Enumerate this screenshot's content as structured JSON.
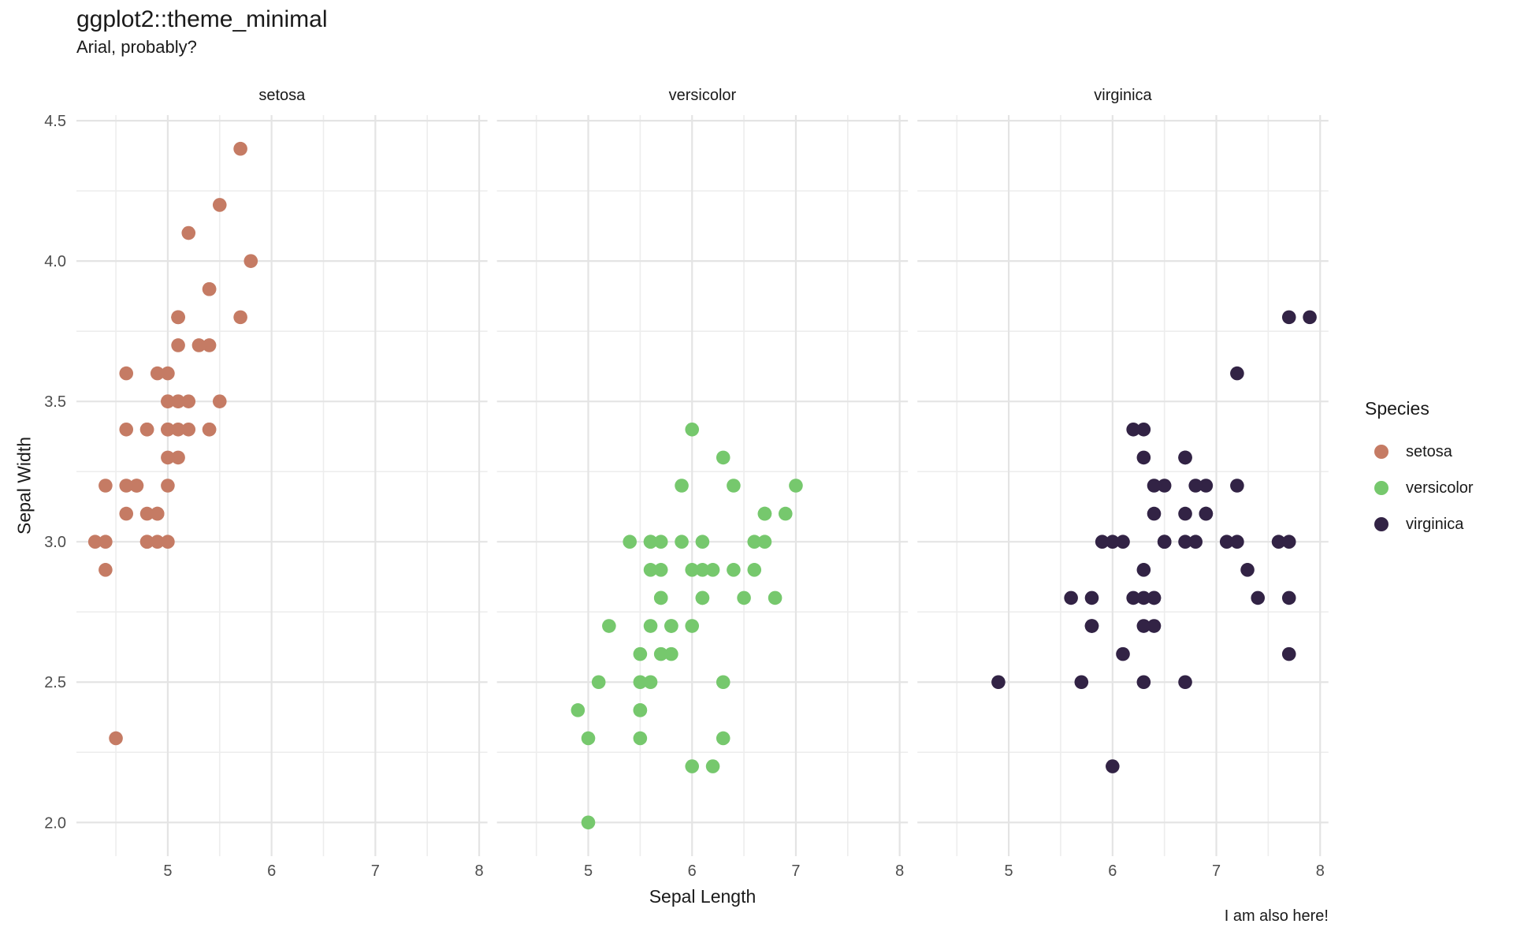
{
  "chart_data": {
    "type": "scatter",
    "title": "ggplot2::theme_minimal",
    "subtitle": "Arial, probably?",
    "caption": "I am also here!",
    "xlabel": "Sepal Length",
    "ylabel": "Sepal Width",
    "legend_title": "Species",
    "legend_position": "right",
    "grid": "on",
    "x_range": [
      4.12,
      8.08
    ],
    "y_range": [
      1.88,
      4.52
    ],
    "x_ticks": [
      "5",
      "6",
      "7",
      "8"
    ],
    "y_ticks": [
      "2.0",
      "2.5",
      "3.0",
      "3.5",
      "4.0",
      "4.5"
    ],
    "x_minor": [
      4.5,
      5.5,
      6.5,
      7.5
    ],
    "y_minor": [
      2.25,
      2.75,
      3.25,
      3.75,
      4.25
    ],
    "colors": {
      "grid_major": "#e4e4e4",
      "grid_minor": "#ededed",
      "tick_text": "#4d4d4d",
      "text": "#1a1a1a"
    },
    "facets": [
      {
        "label": "setosa",
        "color": "#c57b64",
        "points": [
          [
            5.1,
            3.5
          ],
          [
            4.9,
            3.0
          ],
          [
            4.7,
            3.2
          ],
          [
            4.6,
            3.1
          ],
          [
            5.0,
            3.6
          ],
          [
            5.4,
            3.9
          ],
          [
            4.6,
            3.4
          ],
          [
            5.0,
            3.4
          ],
          [
            4.4,
            2.9
          ],
          [
            4.9,
            3.1
          ],
          [
            5.4,
            3.7
          ],
          [
            4.8,
            3.4
          ],
          [
            4.8,
            3.0
          ],
          [
            4.3,
            3.0
          ],
          [
            5.8,
            4.0
          ],
          [
            5.7,
            4.4
          ],
          [
            5.4,
            3.9
          ],
          [
            5.1,
            3.5
          ],
          [
            5.7,
            3.8
          ],
          [
            5.1,
            3.8
          ],
          [
            5.4,
            3.4
          ],
          [
            5.1,
            3.7
          ],
          [
            4.6,
            3.6
          ],
          [
            5.1,
            3.3
          ],
          [
            4.8,
            3.4
          ],
          [
            5.0,
            3.0
          ],
          [
            5.0,
            3.4
          ],
          [
            5.2,
            3.5
          ],
          [
            5.2,
            3.4
          ],
          [
            4.7,
            3.2
          ],
          [
            4.8,
            3.1
          ],
          [
            5.4,
            3.4
          ],
          [
            5.2,
            4.1
          ],
          [
            5.5,
            4.2
          ],
          [
            4.9,
            3.1
          ],
          [
            5.0,
            3.2
          ],
          [
            5.5,
            3.5
          ],
          [
            4.9,
            3.6
          ],
          [
            4.4,
            3.0
          ],
          [
            5.1,
            3.4
          ],
          [
            5.0,
            3.5
          ],
          [
            4.5,
            2.3
          ],
          [
            4.4,
            3.2
          ],
          [
            5.0,
            3.5
          ],
          [
            5.1,
            3.8
          ],
          [
            4.8,
            3.0
          ],
          [
            5.1,
            3.8
          ],
          [
            4.6,
            3.2
          ],
          [
            5.3,
            3.7
          ],
          [
            5.0,
            3.3
          ]
        ]
      },
      {
        "label": "versicolor",
        "color": "#76c86d",
        "points": [
          [
            7.0,
            3.2
          ],
          [
            6.4,
            3.2
          ],
          [
            6.9,
            3.1
          ],
          [
            5.5,
            2.3
          ],
          [
            6.5,
            2.8
          ],
          [
            5.7,
            2.8
          ],
          [
            6.3,
            3.3
          ],
          [
            4.9,
            2.4
          ],
          [
            6.6,
            2.9
          ],
          [
            5.2,
            2.7
          ],
          [
            5.0,
            2.0
          ],
          [
            5.9,
            3.0
          ],
          [
            6.0,
            2.2
          ],
          [
            6.1,
            2.9
          ],
          [
            5.6,
            2.9
          ],
          [
            6.7,
            3.1
          ],
          [
            5.6,
            3.0
          ],
          [
            5.8,
            2.7
          ],
          [
            6.2,
            2.2
          ],
          [
            5.6,
            2.5
          ],
          [
            5.9,
            3.2
          ],
          [
            6.1,
            2.8
          ],
          [
            6.3,
            2.5
          ],
          [
            6.1,
            2.8
          ],
          [
            6.4,
            2.9
          ],
          [
            6.6,
            3.0
          ],
          [
            6.8,
            2.8
          ],
          [
            6.7,
            3.0
          ],
          [
            6.0,
            2.9
          ],
          [
            5.7,
            2.6
          ],
          [
            5.5,
            2.4
          ],
          [
            5.5,
            2.4
          ],
          [
            5.8,
            2.7
          ],
          [
            6.0,
            2.7
          ],
          [
            5.4,
            3.0
          ],
          [
            6.0,
            3.4
          ],
          [
            6.7,
            3.1
          ],
          [
            6.3,
            2.3
          ],
          [
            5.6,
            3.0
          ],
          [
            5.5,
            2.5
          ],
          [
            5.5,
            2.6
          ],
          [
            6.1,
            3.0
          ],
          [
            5.8,
            2.6
          ],
          [
            5.0,
            2.3
          ],
          [
            5.6,
            2.7
          ],
          [
            5.7,
            3.0
          ],
          [
            5.7,
            2.9
          ],
          [
            6.2,
            2.9
          ],
          [
            5.1,
            2.5
          ],
          [
            5.7,
            2.8
          ]
        ]
      },
      {
        "label": "virginica",
        "color": "#322345",
        "points": [
          [
            6.3,
            3.3
          ],
          [
            5.8,
            2.7
          ],
          [
            7.1,
            3.0
          ],
          [
            6.3,
            2.9
          ],
          [
            6.5,
            3.0
          ],
          [
            7.6,
            3.0
          ],
          [
            4.9,
            2.5
          ],
          [
            7.3,
            2.9
          ],
          [
            6.7,
            2.5
          ],
          [
            7.2,
            3.6
          ],
          [
            6.5,
            3.2
          ],
          [
            6.4,
            2.7
          ],
          [
            6.8,
            3.0
          ],
          [
            5.7,
            2.5
          ],
          [
            5.8,
            2.8
          ],
          [
            6.4,
            3.2
          ],
          [
            6.5,
            3.0
          ],
          [
            7.7,
            3.8
          ],
          [
            7.7,
            2.6
          ],
          [
            6.0,
            2.2
          ],
          [
            6.9,
            3.2
          ],
          [
            5.6,
            2.8
          ],
          [
            7.7,
            2.8
          ],
          [
            6.3,
            2.7
          ],
          [
            6.7,
            3.3
          ],
          [
            7.2,
            3.2
          ],
          [
            6.2,
            2.8
          ],
          [
            6.1,
            3.0
          ],
          [
            6.4,
            2.8
          ],
          [
            7.2,
            3.0
          ],
          [
            7.4,
            2.8
          ],
          [
            7.9,
            3.8
          ],
          [
            6.4,
            2.8
          ],
          [
            6.3,
            2.8
          ],
          [
            6.1,
            2.6
          ],
          [
            7.7,
            3.0
          ],
          [
            6.3,
            3.4
          ],
          [
            6.4,
            3.1
          ],
          [
            6.0,
            3.0
          ],
          [
            6.9,
            3.1
          ],
          [
            6.7,
            3.1
          ],
          [
            6.9,
            3.1
          ],
          [
            5.8,
            2.7
          ],
          [
            6.8,
            3.2
          ],
          [
            6.7,
            3.3
          ],
          [
            6.7,
            3.0
          ],
          [
            6.3,
            2.5
          ],
          [
            6.5,
            3.0
          ],
          [
            6.2,
            3.4
          ],
          [
            5.9,
            3.0
          ]
        ]
      }
    ]
  }
}
